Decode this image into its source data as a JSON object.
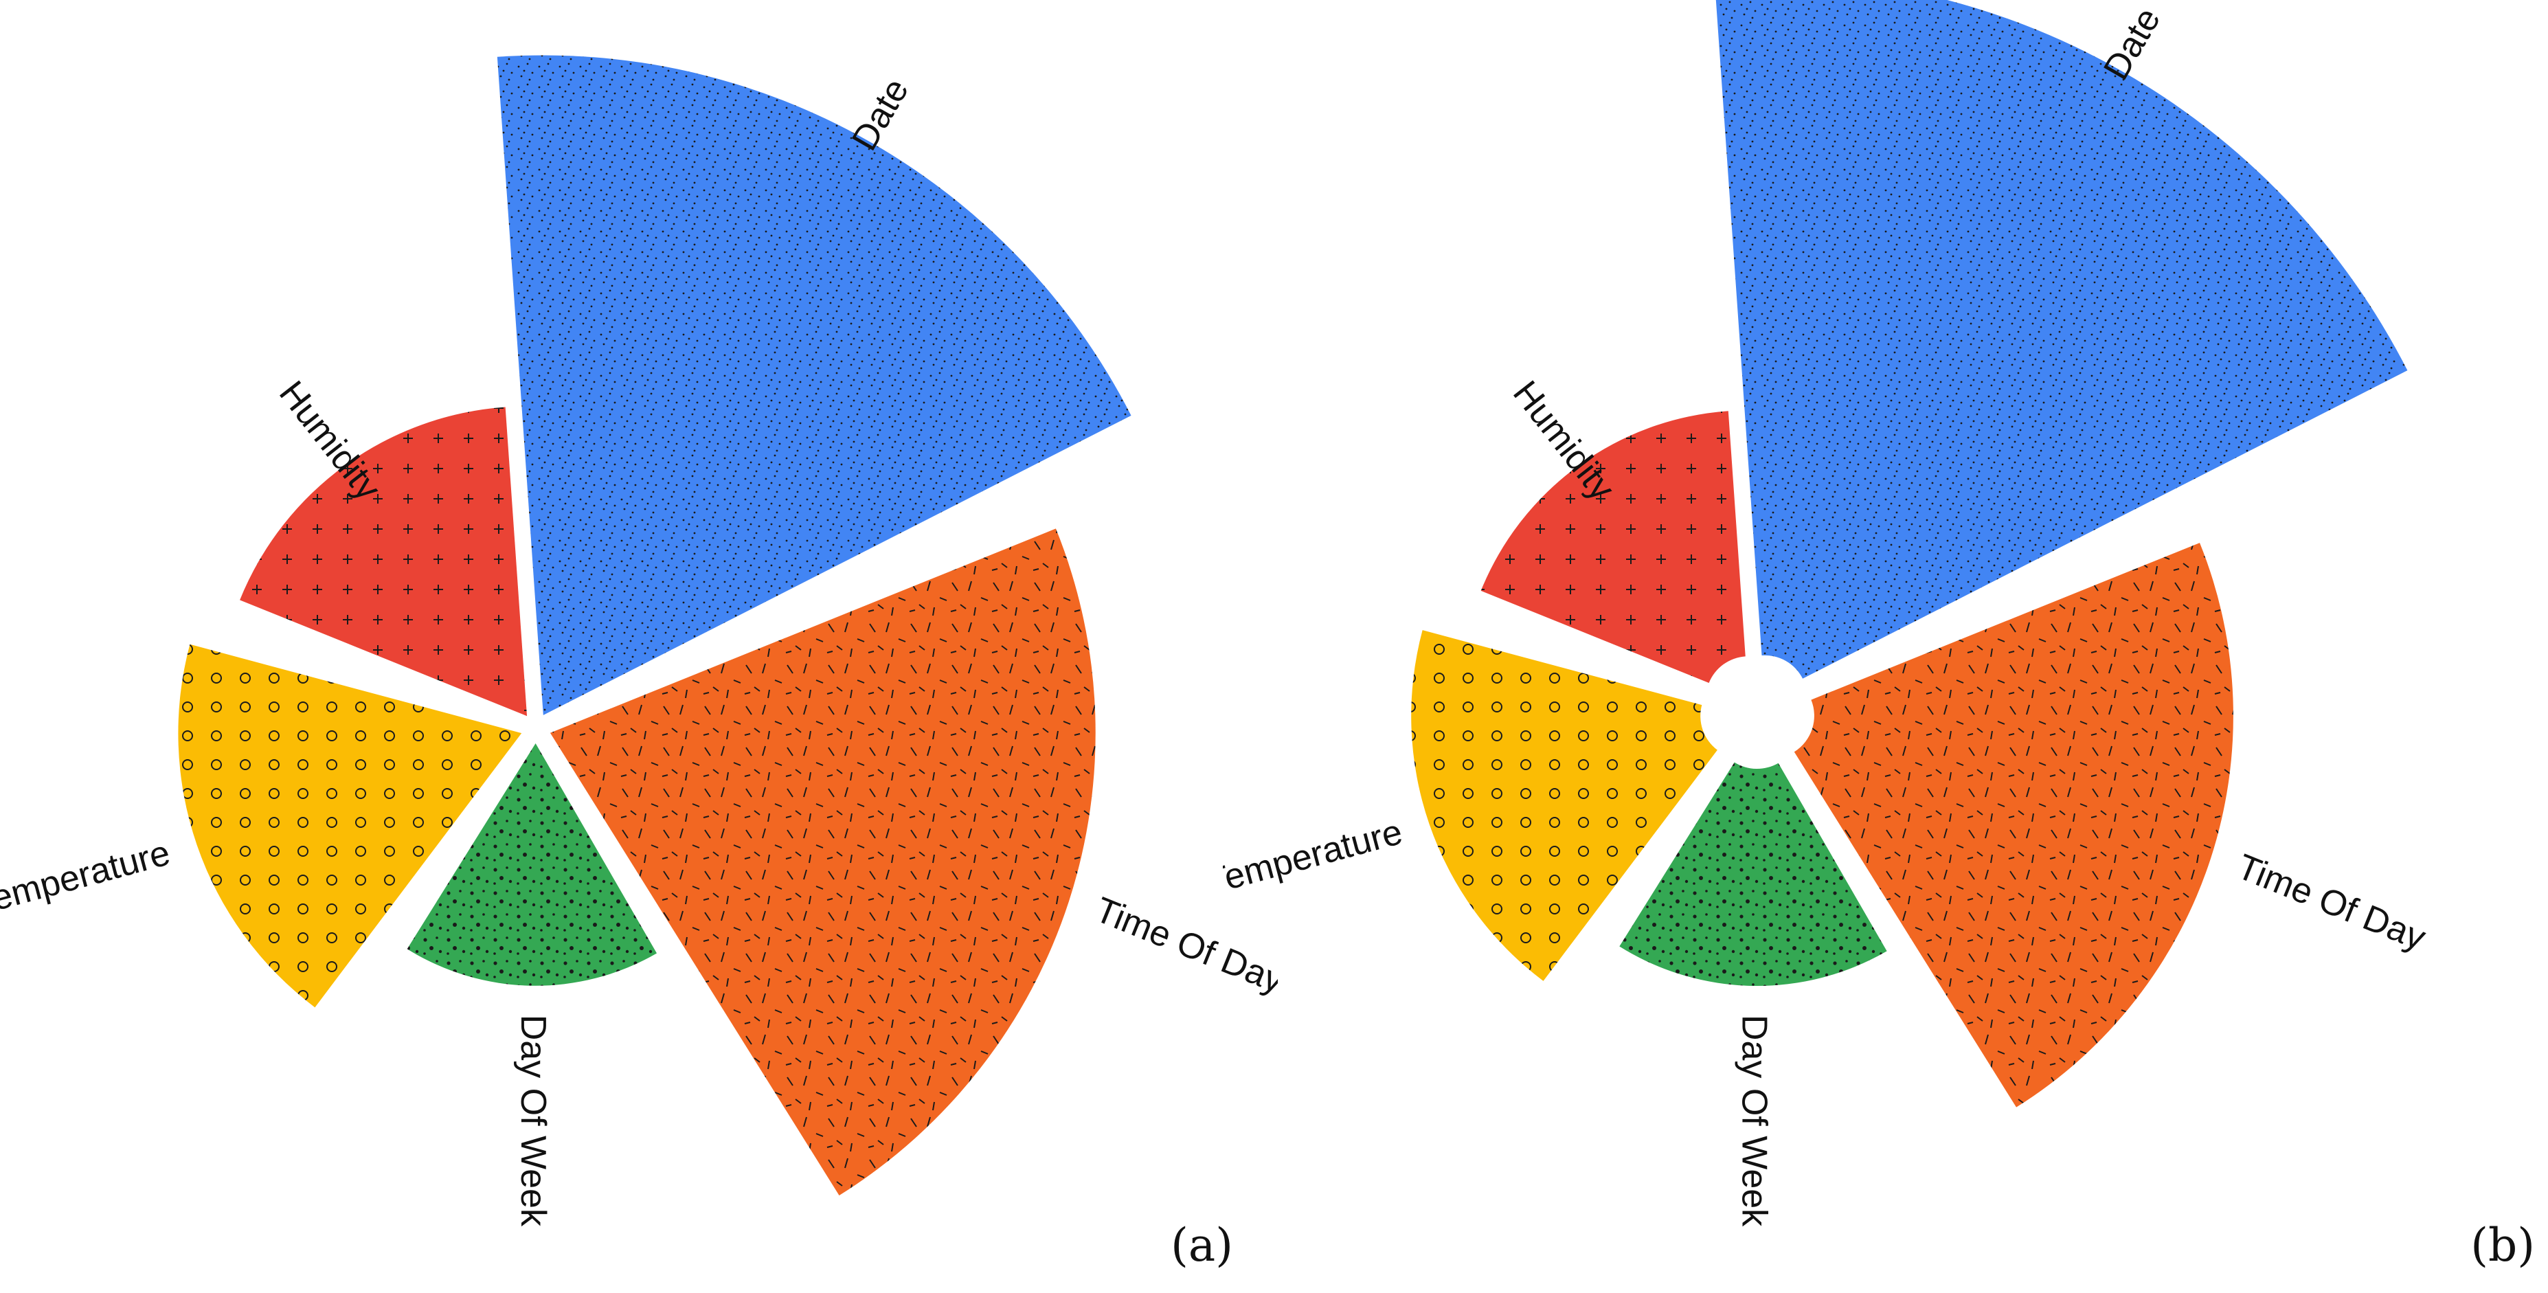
{
  "chart_data": [
    {
      "type": "nightingale-rose",
      "panel": "a",
      "panel_label": "(a)",
      "series": [
        {
          "category": "Date",
          "value": 0.98,
          "start_deg": -4,
          "end_deg": 63,
          "color": "#4285f4",
          "pattern": "fine-dots"
        },
        {
          "category": "Time Of Day",
          "value": 0.81,
          "start_deg": 68,
          "end_deg": 148,
          "color": "#f26722",
          "pattern": "dashes"
        },
        {
          "category": "Day Of Week",
          "value": 0.36,
          "start_deg": 150,
          "end_deg": 212,
          "color": "#34a853",
          "pattern": "large-dots"
        },
        {
          "category": "Temperature",
          "value": 0.51,
          "start_deg": 217,
          "end_deg": 285,
          "color": "#fbbc04",
          "pattern": "circles"
        },
        {
          "category": "Humidity",
          "value": 0.46,
          "start_deg": 292,
          "end_deg": 356,
          "color": "#ea4335",
          "pattern": "plus"
        }
      ],
      "inner_hole": false
    },
    {
      "type": "nightingale-rose",
      "panel": "b",
      "panel_label": "(b)",
      "series": [
        {
          "category": "Date",
          "value": 1.0,
          "start_deg": -4,
          "end_deg": 63,
          "color": "#4285f4",
          "pattern": "fine-dots"
        },
        {
          "category": "Time Of Day",
          "value": 0.64,
          "start_deg": 68,
          "end_deg": 148,
          "color": "#f26722",
          "pattern": "dashes"
        },
        {
          "category": "Day Of Week",
          "value": 0.36,
          "start_deg": 150,
          "end_deg": 212,
          "color": "#34a853",
          "pattern": "large-dots"
        },
        {
          "category": "Temperature",
          "value": 0.46,
          "start_deg": 217,
          "end_deg": 285,
          "color": "#fbbc04",
          "pattern": "circles"
        },
        {
          "category": "Humidity",
          "value": 0.4,
          "start_deg": 292,
          "end_deg": 356,
          "color": "#ea4335",
          "pattern": "plus"
        }
      ],
      "inner_hole": true
    }
  ]
}
